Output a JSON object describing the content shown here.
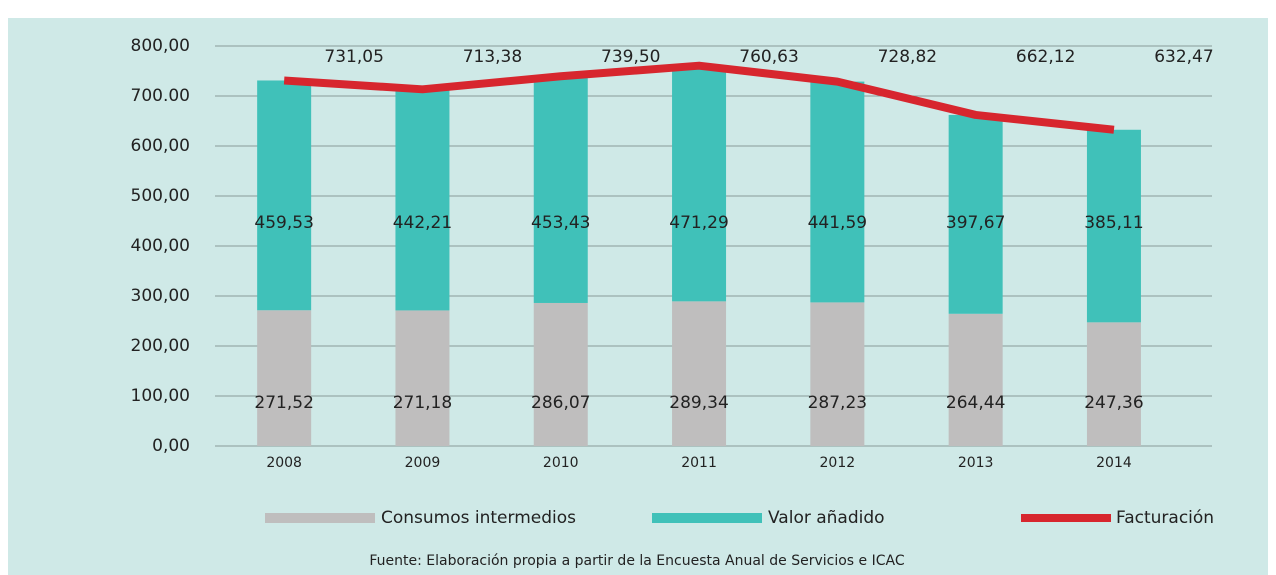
{
  "chart_data": {
    "type": "stacked_bar_line",
    "categories": [
      "2008",
      "2009",
      "2010",
      "2011",
      "2012",
      "2013",
      "2014"
    ],
    "series": [
      {
        "name": "Consumos intermedios",
        "color": "#bfbebe",
        "values": [
          271.52,
          271.18,
          286.07,
          289.34,
          287.23,
          264.44,
          247.36
        ],
        "value_labels": [
          "271,52",
          "271,18",
          "286,07",
          "289,34",
          "287,23",
          "264,44",
          "247,36"
        ]
      },
      {
        "name": "Valor añadido",
        "color": "#40c1b9",
        "values": [
          459.53,
          442.21,
          453.43,
          471.29,
          441.59,
          397.67,
          385.11
        ],
        "value_labels": [
          "459,53",
          "442,21",
          "453,43",
          "471,29",
          "441,59",
          "397,67",
          "385,11"
        ]
      },
      {
        "name": "Facturación",
        "color": "#d7262e",
        "type": "line",
        "values": [
          731.05,
          713.38,
          739.5,
          760.63,
          728.82,
          662.12,
          632.47
        ],
        "value_labels": [
          "731,05",
          "713,38",
          "739,50",
          "760,63",
          "728,82",
          "662,12",
          "632,47"
        ]
      }
    ],
    "ylim": [
      0,
      800
    ],
    "yticks": [
      {
        "value": 0,
        "label": "0,00"
      },
      {
        "value": 100,
        "label": "100,00"
      },
      {
        "value": 200,
        "label": "200,00"
      },
      {
        "value": 300,
        "label": "300,00"
      },
      {
        "value": 400,
        "label": "400,00"
      },
      {
        "value": 500,
        "label": "500,00"
      },
      {
        "value": 600,
        "label": "600,00"
      },
      {
        "value": 700,
        "label": "700.00"
      },
      {
        "value": 800,
        "label": "800,00"
      }
    ],
    "grid": true,
    "source": "Fuente: Elaboración propia a partir de la Encuesta Anual de Servicios e ICAC"
  }
}
